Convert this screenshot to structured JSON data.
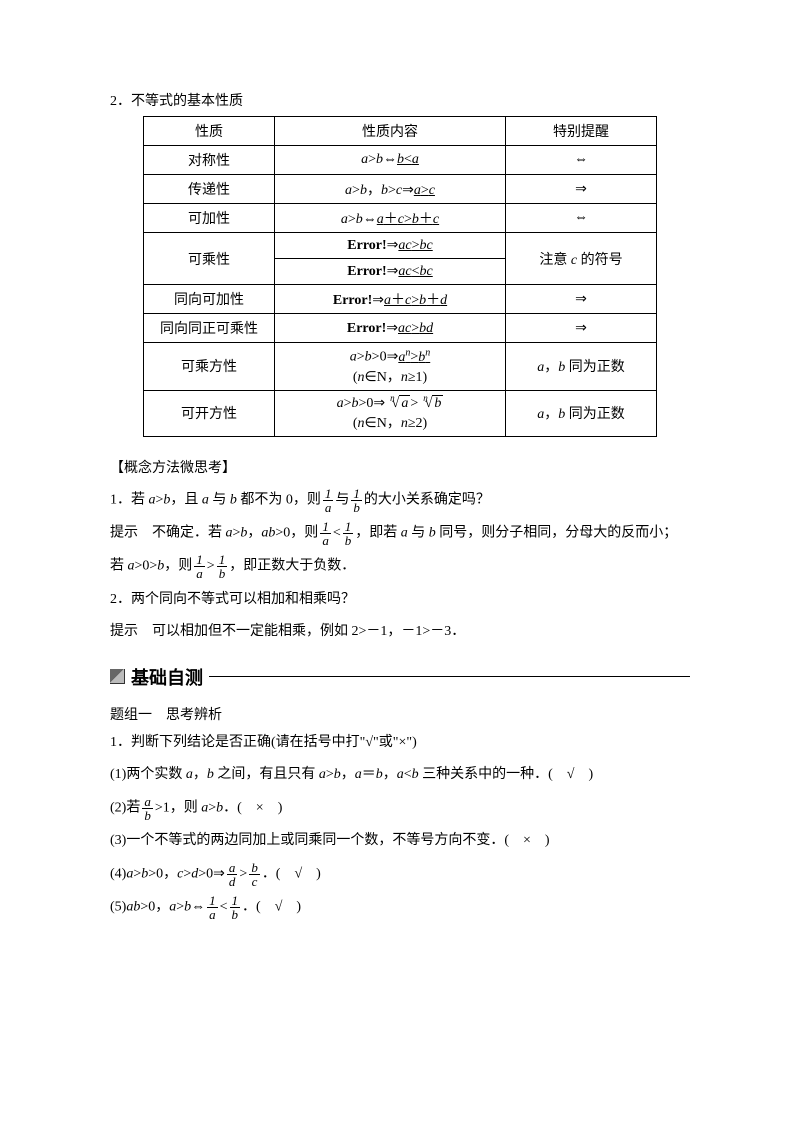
{
  "title": "2．不等式的基本性质",
  "table": {
    "headers": [
      "性质",
      "性质内容",
      "特别提醒"
    ],
    "rows": [
      {
        "name": "对称性",
        "content_html": "<span class='it'>a</span>&gt;<span class='it'>b</span>⇔<span class='u'><span class='it'>b</span>&lt;<span class='it'>a</span></span>",
        "hint": "⇔",
        "rowspan_hint": 1
      },
      {
        "name": "传递性",
        "content_html": "<span class='it'>a</span>&gt;<span class='it'>b</span>，<span class='it'>b</span>&gt;<span class='it'>c</span>⇒<span class='u'><span class='it'>a</span>&gt;<span class='it'>c</span></span>",
        "hint": "⇒",
        "rowspan_hint": 1
      },
      {
        "name": "可加性",
        "content_html": "<span class='it'>a</span>&gt;<span class='it'>b</span>⇔<span class='u'><span class='it'>a</span>＋<span class='it'>c</span>&gt;<span class='it'>b</span>＋<span class='it'>c</span></span>",
        "hint": "⇔",
        "rowspan_hint": 1
      },
      {
        "name": "可乘性",
        "content_html": "<span class='err'>Error!</span>⇒<span class='u'><span class='it'>ac</span>&gt;<span class='it'>bc</span></span>",
        "hint": "注意 <span class='it'>c</span> 的符号",
        "rowspan_hint": 2,
        "rowspan_name": 2
      },
      {
        "name": "",
        "content_html": "<span class='err'>Error!</span>⇒<span class='u'><span class='it'>ac</span>&lt;<span class='it'>bc</span></span>",
        "hint": "",
        "rowspan_hint": 0,
        "rowspan_name": 0
      },
      {
        "name": "同向可加性",
        "content_html": "<span class='err'>Error!</span>⇒<span class='u'><span class='it'>a</span>＋<span class='it'>c</span>&gt;<span class='it'>b</span>＋<span class='it'>d</span></span>",
        "hint": "⇒",
        "rowspan_hint": 1
      },
      {
        "name": "同向同正可乘性",
        "content_html": "<span class='err'>Error!</span>⇒<span class='u'><span class='it'>ac</span>&gt;<span class='it'>bd</span></span>",
        "hint": "⇒",
        "rowspan_hint": 1
      },
      {
        "name": "可乘方性",
        "content_html": "<span class='it'>a</span>&gt;<span class='it'>b</span>&gt;0⇒<span class='u'><span class='it'>a<sup>n</sup></span>&gt;<span class='it'>b<sup>n</sup></span></span><br>(<span class='it'>n</span>∈N，<span class='it'>n</span>≥1)",
        "hint": "<span class='it'>a</span>，<span class='it'>b</span> 同为正数",
        "rowspan_hint": 1
      },
      {
        "name": "可开方性",
        "content_html": "<span class='it'>a</span>&gt;<span class='it'>b</span>&gt;0⇒<span class='rootbox'><span class='rootidx'>n</span><span class='surd'>√</span><span class='radicand'>a</span></span>&gt;<span class='rootbox'><span class='rootidx'>n</span><span class='surd'>√</span><span class='radicand'>b</span></span><br>(<span class='it'>n</span>∈N，<span class='it'>n</span>≥2)",
        "hint": "<span class='it'>a</span>，<span class='it'>b</span> 同为正数",
        "rowspan_hint": 1
      }
    ]
  },
  "thinking": {
    "heading": "【概念方法微思考】",
    "q1_prefix": "1．若 ",
    "q1_cond": "<span class='it'>a</span>&gt;<span class='it'>b</span>，且 <span class='it'>a</span> 与 <span class='it'>b</span> 都不为 0，则",
    "q1_tail": "的大小关系确定吗？",
    "a1_prefix": "提示　不确定．若 <span class='it'>a</span>&gt;<span class='it'>b</span>，<span class='it'>ab</span>&gt;0，则",
    "a1_mid": "，即若 <span class='it'>a</span> 与 <span class='it'>b</span> 同号，则分子相同，分母大的反而小；",
    "a1b_prefix": "若 <span class='it'>a</span>&gt;0&gt;<span class='it'>b</span>，则",
    "a1b_tail": "，即正数大于负数．",
    "q2": "2．两个同向不等式可以相加和相乘吗？",
    "a2": "提示　可以相加但不一定能相乘，例如 2&gt;－1，－1&gt;－3．"
  },
  "banner": "基础自测",
  "group1": {
    "head": "题组一　思考辨析",
    "q1": "1．判断下列结论是否正确(请在括号中打\"√\"或\"×\")",
    "i1": "(1)两个实数 <span class='it'>a</span>，<span class='it'>b</span> 之间，有且只有 <span class='it'>a</span>&gt;<span class='it'>b</span>，<span class='it'>a</span>＝<span class='it'>b</span>，<span class='it'>a</span>&lt;<span class='it'>b</span> 三种关系中的一种．(　√　)",
    "i2_pre": "(2)若",
    "i2_post": "&gt;1，则 <span class='it'>a</span>&gt;<span class='it'>b</span>．(　×　)",
    "i3": "(3)一个不等式的两边同加上或同乘同一个数，不等号方向不变．(　×　)",
    "i4_pre": "(4)<span class='it'>a</span>&gt;<span class='it'>b</span>&gt;0，<span class='it'>c</span>&gt;<span class='it'>d</span>&gt;0⇒",
    "i4_post": "．(　√　)",
    "i5_pre": "(5)<span class='it'>ab</span>&gt;0，<span class='it'>a</span>&gt;<span class='it'>b</span>⇔",
    "i5_post": "．(　√　)"
  },
  "fractions": {
    "one_a": {
      "num": "1",
      "den": "a"
    },
    "one_b": {
      "num": "1",
      "den": "b"
    },
    "a_b": {
      "num": "a",
      "den": "b"
    },
    "a_d": {
      "num": "a",
      "den": "d"
    },
    "b_c": {
      "num": "b",
      "den": "c"
    }
  }
}
